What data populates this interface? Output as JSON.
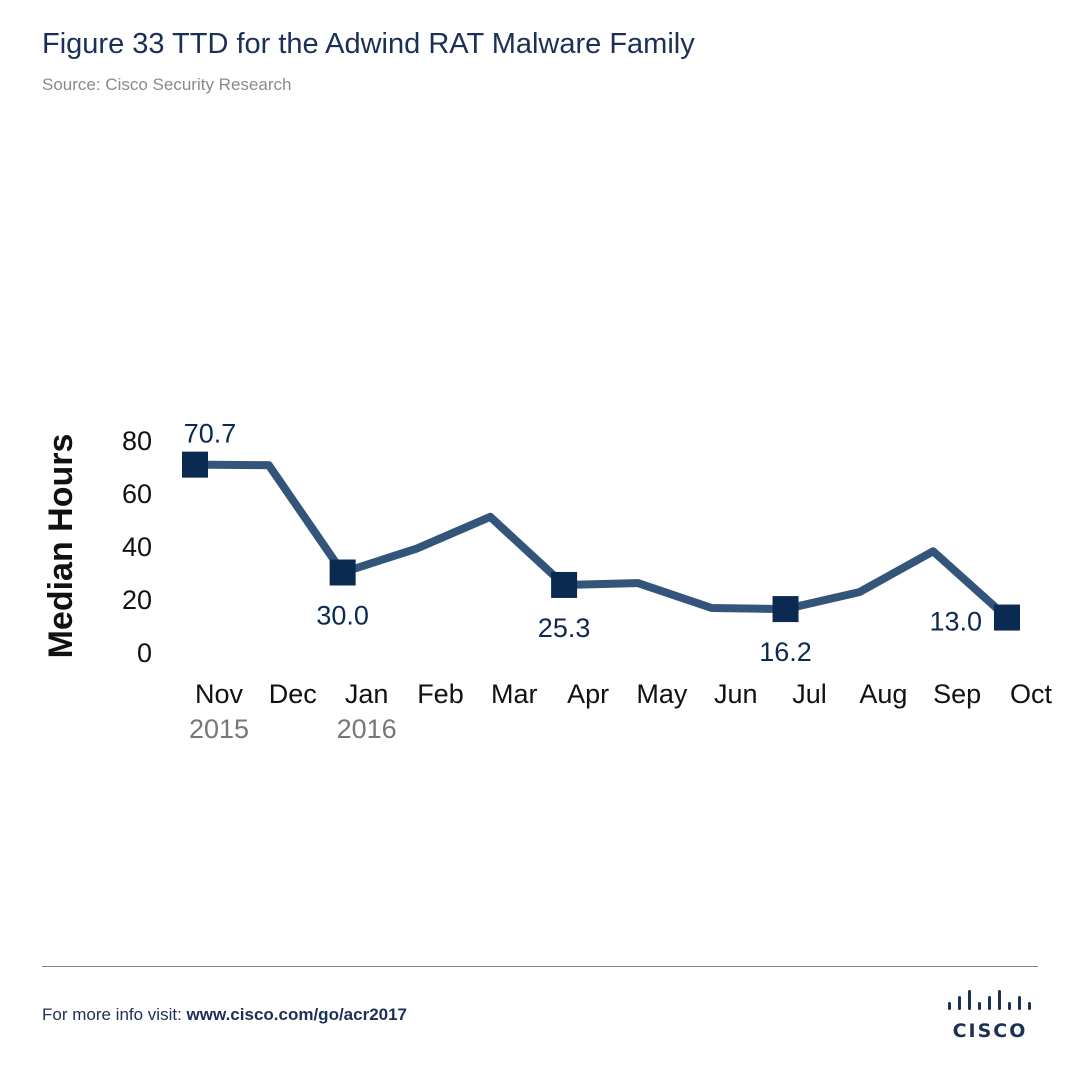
{
  "header": {
    "title": "Figure 33  TTD for the Adwind RAT Malware Family",
    "source": "Source: Cisco Security Research"
  },
  "chart_data": {
    "type": "line",
    "title": "Figure 33  TTD for the Adwind RAT Malware Family",
    "xlabel": "",
    "ylabel": "Median Hours",
    "ylim": [
      0,
      80
    ],
    "yticks": [
      0,
      20,
      40,
      60,
      80
    ],
    "categories": [
      "Nov",
      "Dec",
      "Jan",
      "Feb",
      "Mar",
      "Apr",
      "May",
      "Jun",
      "Jul",
      "Aug",
      "Sep",
      "Oct"
    ],
    "year_labels": [
      {
        "index": 0,
        "label": "2015"
      },
      {
        "index": 2,
        "label": "2016"
      }
    ],
    "series": [
      {
        "name": "Median Hours",
        "values": [
          70.7,
          70.5,
          30.0,
          39,
          51,
          25.3,
          26,
          16.6,
          16.2,
          22.6,
          38,
          13.0
        ]
      }
    ],
    "data_labels": [
      {
        "index": 0,
        "label": "70.7",
        "position": "above"
      },
      {
        "index": 2,
        "label": "30.0",
        "position": "below"
      },
      {
        "index": 5,
        "label": "25.3",
        "position": "below"
      },
      {
        "index": 8,
        "label": "16.2",
        "position": "below"
      },
      {
        "index": 11,
        "label": "13.0",
        "position": "left"
      }
    ],
    "grid": false,
    "colors": {
      "line": "#34557a",
      "marker": "#0b2a52",
      "label": "#0b2a52",
      "tick": "#111111",
      "year": "#777777"
    }
  },
  "footer": {
    "prefix": "For more info visit: ",
    "link": "www.cisco.com/go/acr2017",
    "logo_text": "CISCO"
  }
}
